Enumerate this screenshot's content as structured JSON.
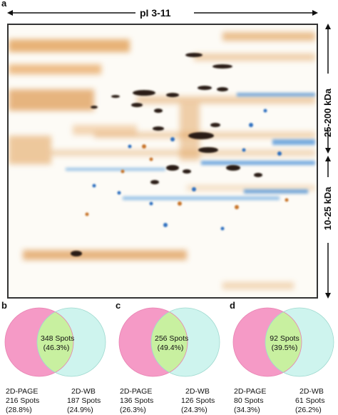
{
  "figure": {
    "panel_a": {
      "letter": "a",
      "pi_range": "pI 3-11",
      "mass_upper": "25-200 kDa",
      "mass_lower": "10-25 kDa",
      "colors": {
        "orange": "#d8862e",
        "blue": "#3f8ad6",
        "dark": "#2a1e14"
      }
    },
    "venns": [
      {
        "letter": "b",
        "overlap": {
          "count": "348 Spots",
          "pct": "(46.3%)"
        },
        "left": {
          "name": "2D-PAGE",
          "count": "216 Spots",
          "pct": "(28.8%)"
        },
        "right": {
          "name": "2D-WB",
          "count": "187 Spots",
          "pct": "(24.9%)"
        }
      },
      {
        "letter": "c",
        "overlap": {
          "count": "256 Spots",
          "pct": "(49.4%)"
        },
        "left": {
          "name": "2D-PAGE",
          "count": "136 Spots",
          "pct": "(26.3%)"
        },
        "right": {
          "name": "2D-WB",
          "count": "126 Spots",
          "pct": "(24.3%)"
        }
      },
      {
        "letter": "d",
        "overlap": {
          "count": "92 Spots",
          "pct": "(39.5%)"
        },
        "left": {
          "name": "2D-PAGE",
          "count": "80 Spots",
          "pct": "(34.3%)"
        },
        "right": {
          "name": "2D-WB",
          "count": "61 Spots",
          "pct": "(26.2%)"
        }
      }
    ],
    "venn_colors": {
      "left": "#f59ac6",
      "right": "#c9f3ec",
      "overlap": "#c8f0a0",
      "outline": "#a8c9c2"
    }
  }
}
